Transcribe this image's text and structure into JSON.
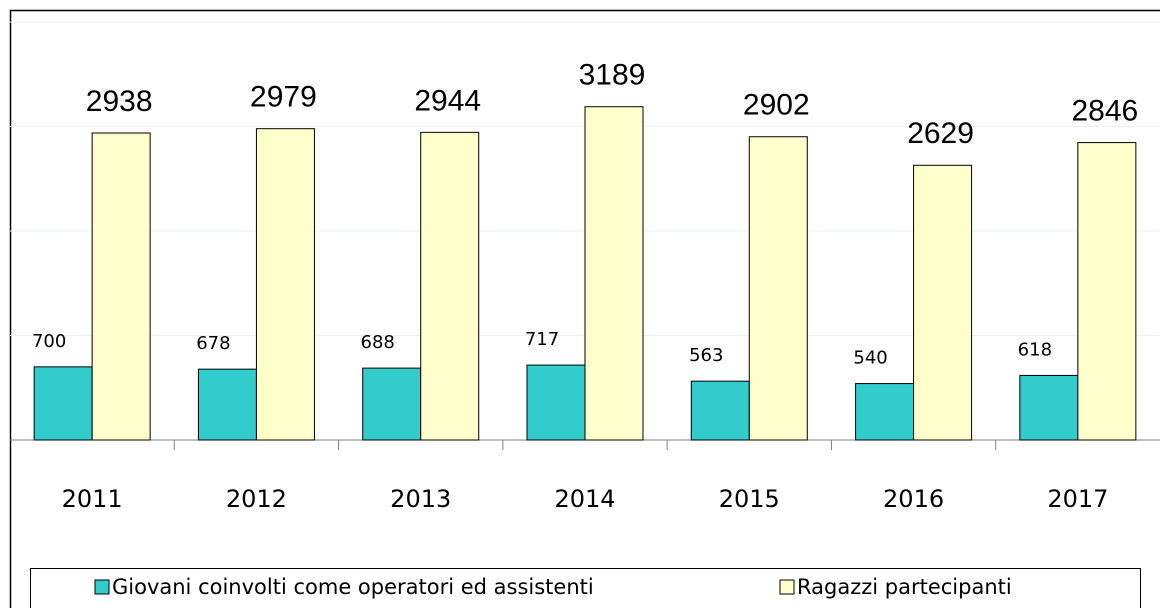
{
  "chart_data": {
    "type": "bar",
    "categories": [
      "2011",
      "2012",
      "2013",
      "2014",
      "2015",
      "2016",
      "2017"
    ],
    "series": [
      {
        "name": "Giovani coinvolti come operatori ed assistenti",
        "color": "#33cccc",
        "values": [
          700,
          678,
          688,
          717,
          563,
          540,
          618
        ]
      },
      {
        "name": "Ragazzi partecipanti",
        "color": "#ffffcc",
        "values": [
          2938,
          2979,
          2944,
          3189,
          2902,
          2629,
          2846
        ]
      }
    ],
    "ylim": [
      0,
      4000
    ],
    "yticks": [
      0,
      1000,
      2000,
      3000,
      4000
    ],
    "grid": true,
    "legend": "bottom"
  }
}
